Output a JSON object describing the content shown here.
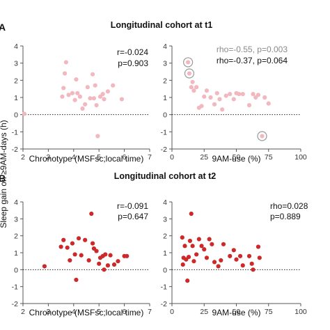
{
  "panels": [
    {
      "letter": "A",
      "title": "Longitudinal cohort at t1"
    },
    {
      "letter": "B",
      "title": "Longitudinal cohort at t2"
    }
  ],
  "shared_ylabel": "Sleep gain on ≥9AM-days (h)",
  "colors": {
    "t1": "#f2b8c0",
    "t2": "#cc2a2a",
    "text": "#111111",
    "grey_text": "#8a8a8a",
    "axis": "#555555"
  },
  "chart_data": [
    {
      "id": "A-left",
      "type": "scatter",
      "xlabel": "Chronotype (MSFsc;local time)",
      "ylabel": "",
      "xlim": [
        2,
        7
      ],
      "ylim": [
        -2,
        4
      ],
      "xticks": [
        "2",
        "3",
        "4",
        "5",
        "6",
        "7"
      ],
      "yticks": [
        "-2",
        "-1",
        "0",
        "1",
        "2",
        "3",
        "4"
      ],
      "reference_line": 0,
      "point_color": "#f2b8c0",
      "annotations": [
        {
          "text": "r=-0.024",
          "color": "#111111"
        },
        {
          "text": "p=0.903",
          "color": "#111111"
        }
      ],
      "points": [
        [
          2.05,
          0.05
        ],
        [
          3.55,
          1.05
        ],
        [
          3.6,
          1.55
        ],
        [
          3.65,
          2.4
        ],
        [
          3.7,
          3.05
        ],
        [
          3.8,
          1.15
        ],
        [
          3.95,
          1.25
        ],
        [
          4.05,
          0.85
        ],
        [
          4.1,
          2.05
        ],
        [
          4.15,
          1.25
        ],
        [
          4.25,
          1.05
        ],
        [
          4.35,
          0.35
        ],
        [
          4.45,
          0.6
        ],
        [
          4.55,
          1.6
        ],
        [
          4.65,
          0.95
        ],
        [
          4.75,
          2.35
        ],
        [
          4.8,
          0.95
        ],
        [
          4.85,
          1.7
        ],
        [
          4.9,
          0.55
        ],
        [
          4.95,
          -1.25
        ],
        [
          5.05,
          1.05
        ],
        [
          5.15,
          1.2
        ],
        [
          5.2,
          0.9
        ],
        [
          5.35,
          1.35
        ],
        [
          5.55,
          1.7
        ],
        [
          5.9,
          0.9
        ]
      ]
    },
    {
      "id": "A-right",
      "type": "scatter",
      "xlabel": "9AM-use (%)",
      "ylabel": "",
      "xlim": [
        0,
        100
      ],
      "ylim": [
        -2,
        4
      ],
      "xticks": [
        "0",
        "25",
        "50",
        "75",
        "100"
      ],
      "yticks": [
        "-2",
        "-1",
        "0",
        "1",
        "2",
        "3",
        "4"
      ],
      "reference_line": 0,
      "point_color": "#f2b8c0",
      "annotations": [
        {
          "text": "rho=-0.55, p=0.003",
          "color": "#8a8a8a"
        },
        {
          "text": "rho=-0.37, p=0.064",
          "color": "#111111"
        }
      ],
      "circled_points": [
        [
          12.5,
          3.05
        ],
        [
          13.5,
          2.4
        ],
        [
          70,
          -1.25
        ]
      ],
      "points": [
        [
          12.5,
          3.05
        ],
        [
          13.5,
          2.4
        ],
        [
          15,
          1.6
        ],
        [
          16,
          1.9
        ],
        [
          17,
          1.4
        ],
        [
          19,
          1.6
        ],
        [
          21,
          0.4
        ],
        [
          23,
          0.5
        ],
        [
          25,
          1.05
        ],
        [
          27,
          1.4
        ],
        [
          30,
          1.0
        ],
        [
          33,
          0.6
        ],
        [
          35,
          1.25
        ],
        [
          37,
          0.9
        ],
        [
          39,
          0.3
        ],
        [
          42,
          1.1
        ],
        [
          45,
          1.2
        ],
        [
          48,
          0.9
        ],
        [
          50,
          1.25
        ],
        [
          52,
          1.2
        ],
        [
          55,
          1.2
        ],
        [
          60,
          0.55
        ],
        [
          63,
          1.2
        ],
        [
          65,
          1.0
        ],
        [
          67,
          1.15
        ],
        [
          70,
          -1.25
        ],
        [
          72,
          1.0
        ],
        [
          75,
          0.65
        ]
      ]
    },
    {
      "id": "B-left",
      "type": "scatter",
      "xlabel": "Chronotype (MSFsc;local time)",
      "ylabel": "",
      "xlim": [
        2,
        7
      ],
      "ylim": [
        -2,
        4
      ],
      "xticks": [
        "2",
        "3",
        "4",
        "5",
        "6",
        "7"
      ],
      "yticks": [
        "-2",
        "-1",
        "0",
        "1",
        "2",
        "3",
        "4"
      ],
      "reference_line": 0,
      "point_color": "#cc2a2a",
      "annotations": [
        {
          "text": "r=-0.091",
          "color": "#111111"
        },
        {
          "text": "p=0.647",
          "color": "#111111"
        }
      ],
      "points": [
        [
          2.85,
          0.2
        ],
        [
          3.5,
          1.35
        ],
        [
          3.6,
          1.75
        ],
        [
          3.75,
          1.3
        ],
        [
          3.85,
          0.55
        ],
        [
          3.95,
          1.55
        ],
        [
          4.05,
          0.9
        ],
        [
          4.1,
          -0.6
        ],
        [
          4.2,
          1.85
        ],
        [
          4.3,
          0.85
        ],
        [
          4.45,
          1.75
        ],
        [
          4.6,
          0.55
        ],
        [
          4.7,
          3.3
        ],
        [
          4.75,
          1.55
        ],
        [
          4.8,
          1.25
        ],
        [
          4.9,
          1.1
        ],
        [
          5.0,
          0.35
        ],
        [
          5.05,
          0.7
        ],
        [
          5.15,
          0.8
        ],
        [
          5.2,
          0.0
        ],
        [
          5.25,
          0.9
        ],
        [
          5.35,
          0.25
        ],
        [
          5.45,
          0.85
        ],
        [
          5.6,
          0.3
        ],
        [
          5.75,
          0.5
        ],
        [
          6.0,
          0.8
        ],
        [
          6.1,
          0.8
        ]
      ]
    },
    {
      "id": "B-right",
      "type": "scatter",
      "xlabel": "9AM-use (%)",
      "ylabel": "",
      "xlim": [
        0,
        100
      ],
      "ylim": [
        -2,
        4
      ],
      "xticks": [
        "0",
        "25",
        "50",
        "75",
        "100"
      ],
      "yticks": [
        "-2",
        "-1",
        "0",
        "1",
        "2",
        "3",
        "4"
      ],
      "reference_line": 0,
      "point_color": "#cc2a2a",
      "annotations": [
        {
          "text": "rho=0.028",
          "color": "#111111"
        },
        {
          "text": "p=0.889",
          "color": "#111111"
        }
      ],
      "points": [
        [
          8,
          1.9
        ],
        [
          8.5,
          0.3
        ],
        [
          9,
          0.7
        ],
        [
          10,
          1.4
        ],
        [
          11,
          0.6
        ],
        [
          12,
          -0.65
        ],
        [
          13,
          0.75
        ],
        [
          14,
          1.7
        ],
        [
          15,
          3.3
        ],
        [
          16,
          1.4
        ],
        [
          17,
          0.5
        ],
        [
          19,
          0.9
        ],
        [
          21,
          1.8
        ],
        [
          23,
          1.4
        ],
        [
          25,
          1.2
        ],
        [
          27,
          0.7
        ],
        [
          29,
          1.8
        ],
        [
          31,
          1.5
        ],
        [
          33,
          0.45
        ],
        [
          36,
          0.2
        ],
        [
          38,
          0.55
        ],
        [
          40,
          1.5
        ],
        [
          45,
          0.8
        ],
        [
          48,
          1.15
        ],
        [
          50,
          0.6
        ],
        [
          53,
          0.8
        ],
        [
          55,
          0.25
        ],
        [
          60,
          0.8
        ],
        [
          62,
          0.35
        ],
        [
          63,
          0.0
        ],
        [
          67,
          1.35
        ],
        [
          68,
          0.7
        ]
      ]
    }
  ]
}
